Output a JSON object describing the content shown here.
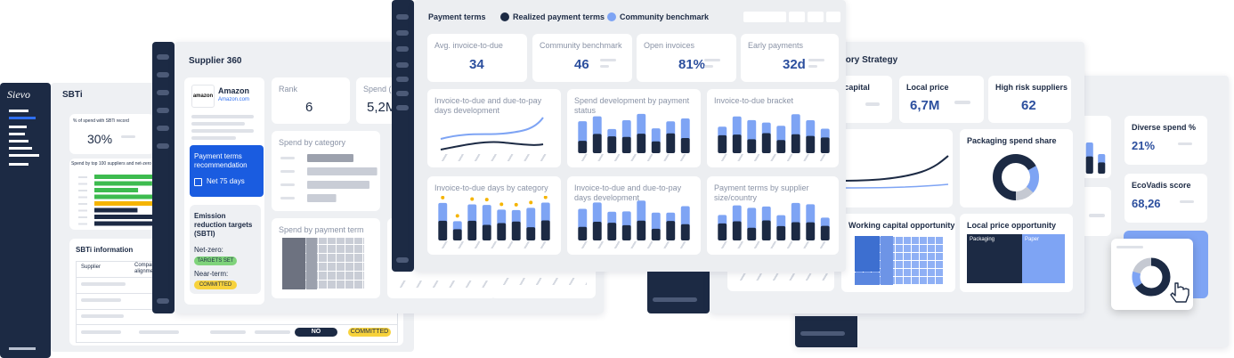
{
  "sbti_view": {
    "logo": "Sievo",
    "title": "SBTi",
    "kpi": {
      "label": "% of spend with SBTi record",
      "value": "30%"
    },
    "chart_title": "Spend by top 100 suppliers and net-zero",
    "table": {
      "title": "SBTi information",
      "columns": [
        "Supplier",
        "Company alignment"
      ],
      "badges": [
        "NO",
        "COMMITTED"
      ]
    }
  },
  "supplier_360": {
    "title": "Supplier 360",
    "supplier": {
      "logo": "amazon",
      "name": "Amazon",
      "url": "Amazon.com"
    },
    "recommendation": {
      "title": "Payment terms recommendation",
      "value": "Net 75 days"
    },
    "emissions": {
      "title": "Emission reduction targets (SBTI)",
      "net_zero_label": "Net-zero:",
      "net_zero_status": "TARGETS SET",
      "near_term_label": "Near-term:",
      "near_term_status": "COMMITTED"
    },
    "kpis": [
      {
        "label": "Rank",
        "value": "6"
      },
      {
        "label": "Spend (EUR)",
        "value": "5,2M"
      }
    ],
    "cards": [
      "Spend by category",
      "Spend by payment term"
    ]
  },
  "payment_terms": {
    "title": "Payment terms",
    "legend": [
      "Realized payment terms",
      "Community benchmark"
    ],
    "kpis": [
      {
        "label": "Avg. invoice-to-due",
        "value": "34"
      },
      {
        "label": "Community benchmark",
        "value": "46"
      },
      {
        "label": "Open invoices",
        "value": "81%"
      },
      {
        "label": "Early payments",
        "value": "32d"
      }
    ],
    "charts": [
      "Invoice-to-due and due-to-pay days development",
      "Spend development by payment status",
      "Invoice-to-due bracket",
      "Invoice-to-due days by category",
      "Invoice-to-due and due-to-pay days development",
      "Payment terms by supplier size/country"
    ]
  },
  "category_strategy": {
    "title": "Category Strategy",
    "kpis": [
      {
        "label": "Working capital"
      },
      {
        "label": "Local price",
        "value": "6,7M"
      },
      {
        "label": "High risk suppliers",
        "value": "62"
      }
    ],
    "cards": [
      "Packaging spend share",
      "Working capital opportunity",
      "Local price opportunity"
    ],
    "treemap_labels": [
      "Packaging",
      "Paper"
    ]
  },
  "sustainability": {
    "kpis": [
      {
        "label": "Diverse spend %",
        "value": "21%"
      },
      {
        "label": "EcoVadis score",
        "value": "68,26"
      }
    ]
  }
}
